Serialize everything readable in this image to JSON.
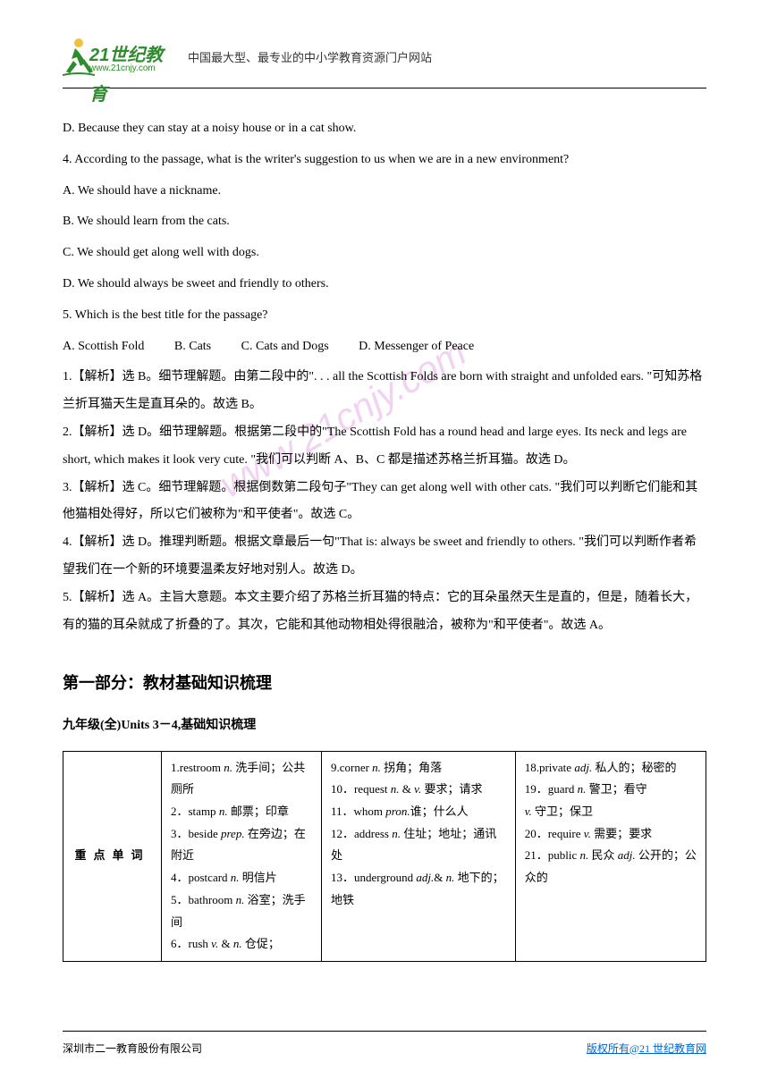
{
  "header": {
    "logo_main": "21世纪教育",
    "logo_url": "www.21cnjy.com",
    "tagline": "中国最大型、最专业的中小学教育资源门户网站"
  },
  "content": {
    "option_d": "D. Because they can stay at a noisy house or in a cat show.",
    "q4": "4. According to the passage, what is the writer's suggestion to us when we are in a new environment?",
    "q4a": "A. We should have a nickname.",
    "q4b": "B. We should learn from the cats.",
    "q4c": "C. We should get along well with dogs.",
    "q4d": "D. We should always be sweet and friendly to others.",
    "q5": "5. Which is the best title for the passage?",
    "q5a": "A. Scottish Fold",
    "q5b": "B. Cats",
    "q5c": "C. Cats and Dogs",
    "q5d": "D. Messenger of Peace",
    "a1": "1.【解析】选 B。细节理解题。由第二段中的\". . . all the Scottish Folds are born with straight and unfolded ears. \"可知苏格兰折耳猫天生是直耳朵的。故选 B。",
    "a2": "2.【解析】选 D。细节理解题。根据第二段中的\"The Scottish Fold has a round head and large eyes. Its neck and legs are short, which makes it look very cute. \"我们可以判断 A、B、C 都是描述苏格兰折耳猫。故选 D。",
    "a3": "3.【解析】选 C。细节理解题。根据倒数第二段句子\"They can get along well with other cats. \"我们可以判断它们能和其他猫相处得好，所以它们被称为\"和平使者\"。故选 C。",
    "a4": "4.【解析】选 D。推理判断题。根据文章最后一句\"That is: always be sweet and friendly to others. \"我们可以判断作者希望我们在一个新的环境要温柔友好地对别人。故选 D。",
    "a5": "5.【解析】选 A。主旨大意题。本文主要介绍了苏格兰折耳猫的特点：它的耳朵虽然天生是直的，但是，随着长大，有的猫的耳朵就成了折叠的了。其次，它能和其他动物相处得很融洽，被称为\"和平使者\"。故选 A。"
  },
  "section": {
    "title": "第一部分：教材基础知识梳理",
    "subtitle": "九年级(全)Units 3－4,基础知识梳理"
  },
  "table": {
    "label": "重点单词",
    "col1": "1.restroom n. 洗手间；公共厕所\n2．stamp n. 邮票；印章\n3．beside prep. 在旁边；在附近\n4．postcard n. 明信片\n5．bathroom n. 浴室；洗手间\n6．rush v. & n. 仓促；",
    "col2": "9.corner n. 拐角；角落\n10．request n. & v. 要求；请求\n11．whom pron.谁；什么人\n12．address n. 住址；地址；通讯处\n13．underground adj.& n. 地下的；地铁",
    "col3": "18.private adj. 私人的；秘密的\n19．guard n. 警卫；看守\nv. 守卫；保卫\n20．require v. 需要；要求\n21．public n. 民众 adj. 公开的；公众的"
  },
  "footer": {
    "left": "深圳市二一教育股份有限公司",
    "right_prefix": "版权所有@",
    "right_link": "21 世纪教育网"
  },
  "watermark": "www.21cnjy.com",
  "colors": {
    "logo_green": "#2e8b2e",
    "link_blue": "#0066cc",
    "watermark_pink": "#c850c8"
  }
}
